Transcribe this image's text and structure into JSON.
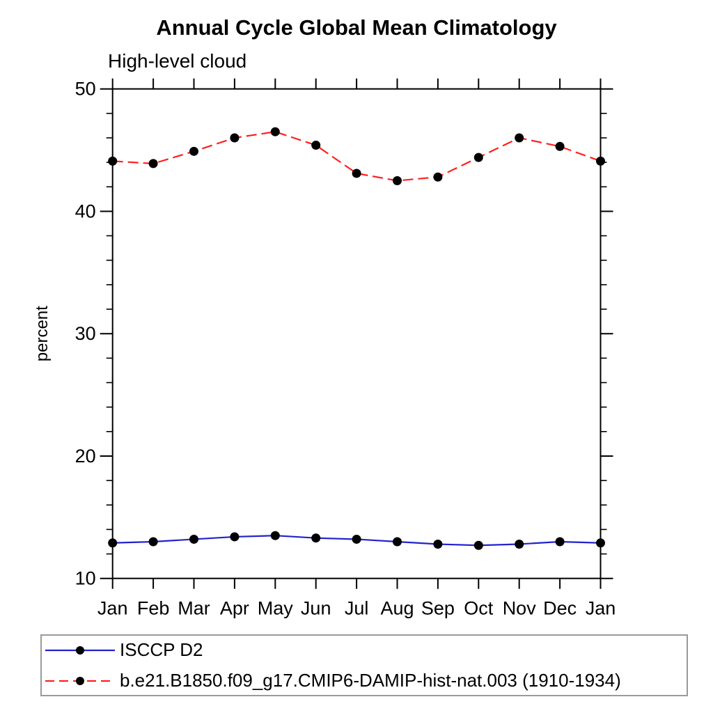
{
  "chart_data": {
    "type": "line",
    "title": "Annual Cycle Global Mean Climatology",
    "subtitle": "High-level cloud",
    "ylabel": "percent",
    "xlabel": "",
    "x_labels": [
      "Jan",
      "Feb",
      "Mar",
      "Apr",
      "May",
      "Jun",
      "Jul",
      "Aug",
      "Sep",
      "Oct",
      "Nov",
      "Dec",
      "Jan"
    ],
    "ylim": [
      10,
      50
    ],
    "y_major_ticks": [
      10,
      20,
      30,
      40,
      50
    ],
    "y_minor_step": 2,
    "grid": false,
    "legend_position": "bottom-left-box",
    "axis_color": "#000000",
    "marker_color": "#000000",
    "series": [
      {
        "name": "ISCCP D2",
        "color": "#2222cc",
        "line_style": "solid",
        "values": [
          12.9,
          13.0,
          13.2,
          13.4,
          13.5,
          13.3,
          13.2,
          13.0,
          12.8,
          12.7,
          12.8,
          13.0,
          12.9
        ]
      },
      {
        "name": "b.e21.B1850.f09_g17.CMIP6-DAMIP-hist-nat.003 (1910-1934)",
        "color": "#ff1f1f",
        "line_style": "dashed",
        "values": [
          44.1,
          43.9,
          44.9,
          46.0,
          46.5,
          45.4,
          43.1,
          42.5,
          42.8,
          44.4,
          46.0,
          45.3,
          44.1
        ]
      }
    ]
  }
}
